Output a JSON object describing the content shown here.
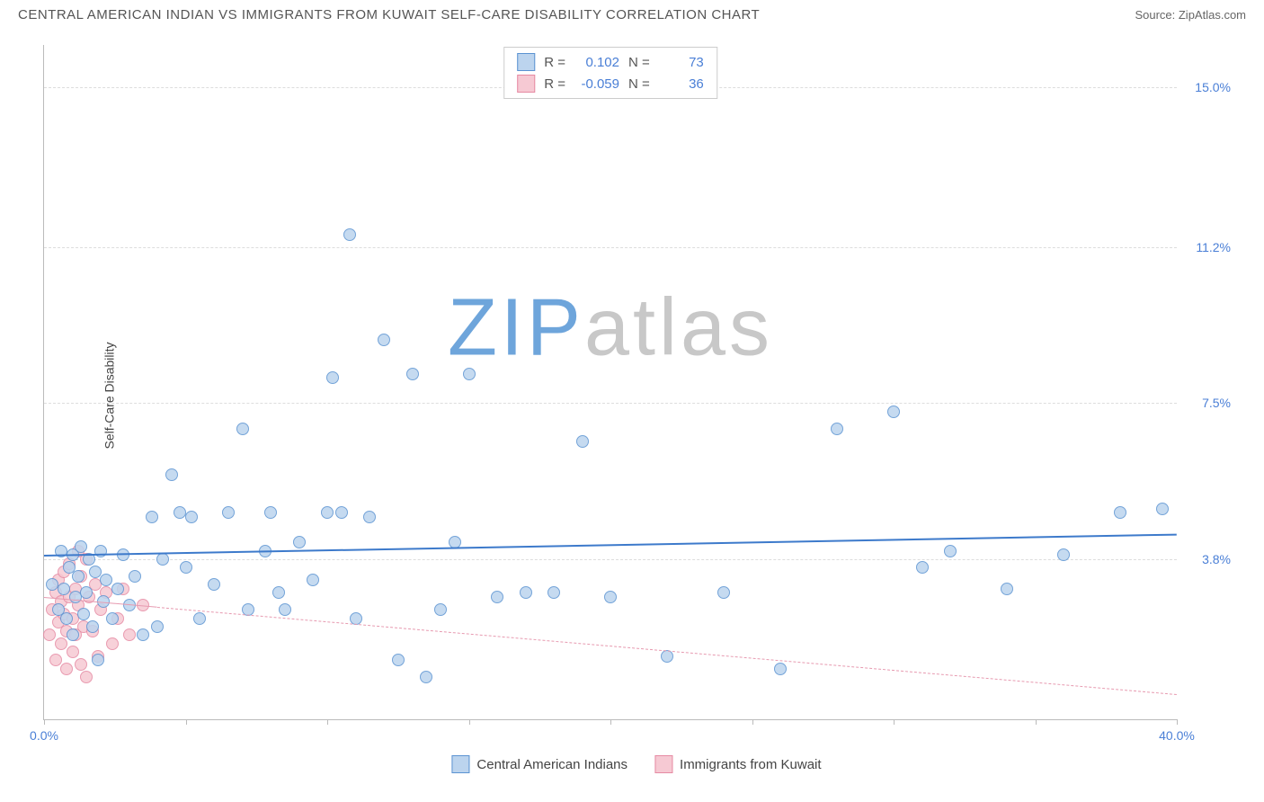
{
  "header": {
    "title": "CENTRAL AMERICAN INDIAN VS IMMIGRANTS FROM KUWAIT SELF-CARE DISABILITY CORRELATION CHART",
    "source": "Source: ZipAtlas.com"
  },
  "ylabel": "Self-Care Disability",
  "watermark": {
    "text": "ZIPatlas",
    "accent": "ZIP",
    "rest": "atlas",
    "accent_color": "#6ea5db",
    "rest_color": "#c8c8c8"
  },
  "axes": {
    "xlim": [
      0,
      40
    ],
    "ylim": [
      0,
      16
    ],
    "yticks": [
      {
        "v": 3.8,
        "label": "3.8%"
      },
      {
        "v": 7.5,
        "label": "7.5%"
      },
      {
        "v": 11.2,
        "label": "11.2%"
      },
      {
        "v": 15.0,
        "label": "15.0%"
      }
    ],
    "xticks": [
      0,
      5,
      10,
      15,
      20,
      25,
      30,
      35,
      40
    ],
    "xmin_label": "0.0%",
    "xmax_label": "40.0%",
    "label_color": "#4a7fd6",
    "grid_color": "#dddddd"
  },
  "series": {
    "a": {
      "name": "Central American Indians",
      "fill": "#bcd4ee",
      "stroke": "#5b93d2",
      "marker_size": 14,
      "marker_opacity": 0.85,
      "R": "0.102",
      "N": "73",
      "trend": {
        "x1": 0,
        "y1": 3.9,
        "x2": 40,
        "y2": 4.4,
        "width": 2.5,
        "dash": false,
        "color": "#3d7acb"
      },
      "points": [
        [
          0.3,
          3.2
        ],
        [
          0.5,
          2.6
        ],
        [
          0.6,
          4.0
        ],
        [
          0.7,
          3.1
        ],
        [
          0.8,
          2.4
        ],
        [
          0.9,
          3.6
        ],
        [
          1.0,
          2.0
        ],
        [
          1.0,
          3.9
        ],
        [
          1.1,
          2.9
        ],
        [
          1.2,
          3.4
        ],
        [
          1.3,
          4.1
        ],
        [
          1.4,
          2.5
        ],
        [
          1.5,
          3.0
        ],
        [
          1.6,
          3.8
        ],
        [
          1.7,
          2.2
        ],
        [
          1.8,
          3.5
        ],
        [
          1.9,
          1.4
        ],
        [
          2.0,
          4.0
        ],
        [
          2.1,
          2.8
        ],
        [
          2.2,
          3.3
        ],
        [
          2.4,
          2.4
        ],
        [
          2.6,
          3.1
        ],
        [
          2.8,
          3.9
        ],
        [
          3.0,
          2.7
        ],
        [
          3.2,
          3.4
        ],
        [
          3.5,
          2.0
        ],
        [
          3.8,
          4.8
        ],
        [
          4.0,
          2.2
        ],
        [
          4.2,
          3.8
        ],
        [
          4.5,
          5.8
        ],
        [
          4.8,
          4.9
        ],
        [
          5.0,
          3.6
        ],
        [
          5.2,
          4.8
        ],
        [
          5.5,
          2.4
        ],
        [
          6.0,
          3.2
        ],
        [
          6.5,
          4.9
        ],
        [
          7.0,
          6.9
        ],
        [
          7.2,
          2.6
        ],
        [
          7.8,
          4.0
        ],
        [
          8.0,
          4.9
        ],
        [
          8.3,
          3.0
        ],
        [
          8.5,
          2.6
        ],
        [
          9.0,
          4.2
        ],
        [
          9.5,
          3.3
        ],
        [
          10.0,
          4.9
        ],
        [
          10.2,
          8.1
        ],
        [
          10.5,
          4.9
        ],
        [
          10.8,
          11.5
        ],
        [
          11.0,
          2.4
        ],
        [
          11.5,
          4.8
        ],
        [
          12.0,
          9.0
        ],
        [
          12.5,
          1.4
        ],
        [
          13.0,
          8.2
        ],
        [
          13.5,
          1.0
        ],
        [
          14.0,
          2.6
        ],
        [
          14.5,
          4.2
        ],
        [
          15.0,
          8.2
        ],
        [
          16.0,
          2.9
        ],
        [
          17.0,
          3.0
        ],
        [
          18.0,
          3.0
        ],
        [
          19.0,
          6.6
        ],
        [
          20.0,
          2.9
        ],
        [
          22.0,
          1.5
        ],
        [
          24.0,
          3.0
        ],
        [
          26.0,
          1.2
        ],
        [
          28.0,
          6.9
        ],
        [
          30.0,
          7.3
        ],
        [
          31.0,
          3.6
        ],
        [
          32.0,
          4.0
        ],
        [
          34.0,
          3.1
        ],
        [
          36.0,
          3.9
        ],
        [
          38.0,
          4.9
        ],
        [
          39.5,
          5.0
        ]
      ]
    },
    "b": {
      "name": "Immigrants from Kuwait",
      "fill": "#f6c9d3",
      "stroke": "#e68aa3",
      "marker_size": 14,
      "marker_opacity": 0.85,
      "R": "-0.059",
      "N": "36",
      "trend": {
        "x1": 0,
        "y1": 2.9,
        "x2": 40,
        "y2": 0.6,
        "width": 1.5,
        "dash": true,
        "color": "#e79ab0"
      },
      "trend_solid_until_x": 4.0,
      "points": [
        [
          0.2,
          2.0
        ],
        [
          0.3,
          2.6
        ],
        [
          0.4,
          3.0
        ],
        [
          0.4,
          1.4
        ],
        [
          0.5,
          2.3
        ],
        [
          0.5,
          3.3
        ],
        [
          0.6,
          2.8
        ],
        [
          0.6,
          1.8
        ],
        [
          0.7,
          2.5
        ],
        [
          0.7,
          3.5
        ],
        [
          0.8,
          2.1
        ],
        [
          0.8,
          1.2
        ],
        [
          0.9,
          2.9
        ],
        [
          0.9,
          3.7
        ],
        [
          1.0,
          2.4
        ],
        [
          1.0,
          1.6
        ],
        [
          1.1,
          3.1
        ],
        [
          1.1,
          2.0
        ],
        [
          1.2,
          2.7
        ],
        [
          1.2,
          4.0
        ],
        [
          1.3,
          1.3
        ],
        [
          1.3,
          3.4
        ],
        [
          1.4,
          2.2
        ],
        [
          1.5,
          3.8
        ],
        [
          1.5,
          1.0
        ],
        [
          1.6,
          2.9
        ],
        [
          1.7,
          2.1
        ],
        [
          1.8,
          3.2
        ],
        [
          1.9,
          1.5
        ],
        [
          2.0,
          2.6
        ],
        [
          2.2,
          3.0
        ],
        [
          2.4,
          1.8
        ],
        [
          2.6,
          2.4
        ],
        [
          2.8,
          3.1
        ],
        [
          3.0,
          2.0
        ],
        [
          3.5,
          2.7
        ]
      ]
    }
  },
  "stat_box": {
    "rows": [
      {
        "series": "a",
        "R_label": "R =",
        "N_label": "N ="
      },
      {
        "series": "b",
        "R_label": "R =",
        "N_label": "N ="
      }
    ],
    "value_color": "#4a7fd6",
    "text_color": "#555"
  },
  "legend": [
    {
      "series": "a"
    },
    {
      "series": "b"
    }
  ]
}
